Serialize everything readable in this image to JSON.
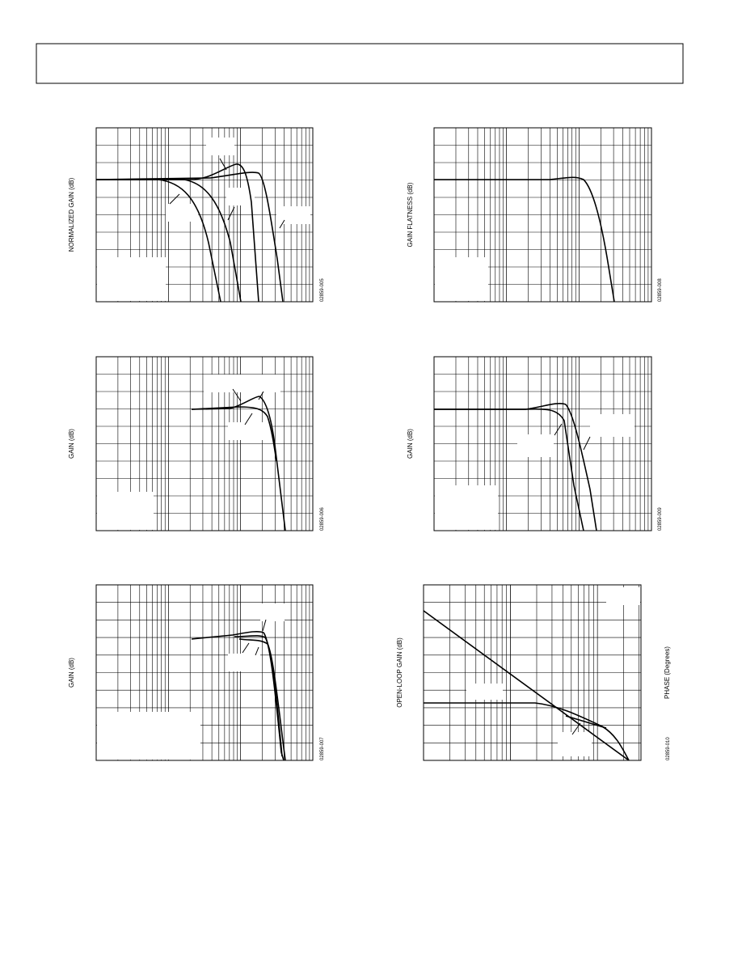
{
  "panels": [
    {
      "y_label": "NORMALIZED GAIN (dB)",
      "code": "02859-005"
    },
    {
      "y_label": "GAIN FLATNESS (dB)",
      "code": "02859-008"
    },
    {
      "y_label": "GAIN (dB)",
      "code": "02859-006"
    },
    {
      "y_label": "GAIN (dB)",
      "code": "02859-009"
    },
    {
      "y_label": "GAIN (dB)",
      "code": "02859-007"
    },
    {
      "y_label": "OPEN-LOOP GAIN (dB)",
      "y2_label": "PHASE (Degrees)",
      "code": "02859-010"
    }
  ]
}
